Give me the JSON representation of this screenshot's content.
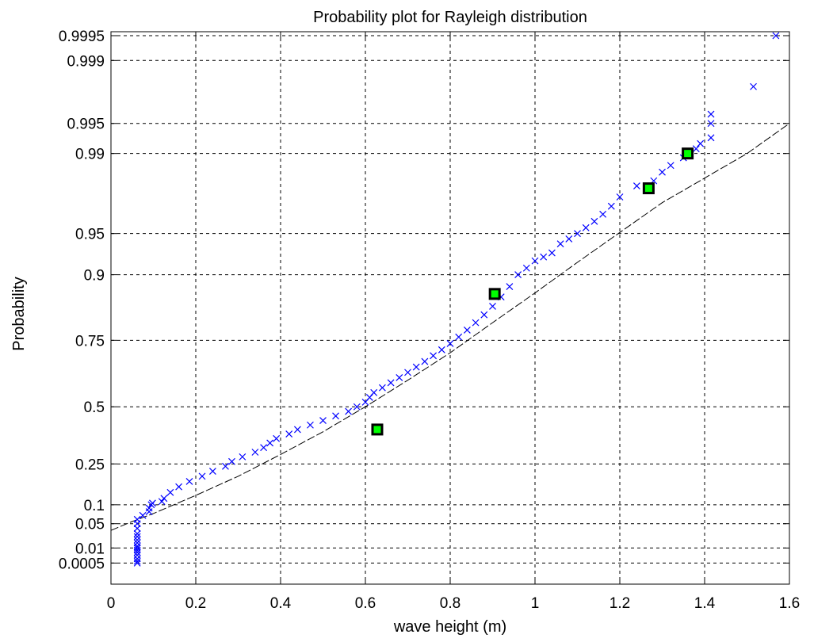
{
  "chart_data": {
    "type": "scatter",
    "title": "Probability plot for Rayleigh distribution",
    "xlabel": "wave height (m)",
    "ylabel": "Probability",
    "xlim": [
      0,
      1.6
    ],
    "x_ticks": [
      0,
      0.2,
      0.4,
      0.6,
      0.8,
      1,
      1.2,
      1.4,
      1.6
    ],
    "x_tick_labels": [
      "0",
      "0.2",
      "0.4",
      "0.6",
      "0.8",
      "1",
      "1.2",
      "1.4",
      "1.6"
    ],
    "y_scale": "rayleigh-probability",
    "y_ticks": [
      0.0005,
      0.01,
      0.05,
      0.1,
      0.25,
      0.5,
      0.75,
      0.9,
      0.95,
      0.99,
      0.995,
      0.999,
      0.9995
    ],
    "y_tick_labels": [
      "0.0005",
      "0.01",
      "0.05",
      "0.1",
      "0.25",
      "0.5",
      "0.75",
      "0.9",
      "0.95",
      "0.99",
      "0.995",
      "0.999",
      "0.9995"
    ],
    "grid": true,
    "colors": {
      "samples": "#0000ff",
      "fit_line": "#000000",
      "markers_fill": "#00ff00",
      "markers_edge": "#000000"
    },
    "samples": {
      "x": [
        0.062,
        0.062,
        0.062,
        0.062,
        0.062,
        0.062,
        0.062,
        0.062,
        0.062,
        0.062,
        0.062,
        0.062,
        0.062,
        0.062,
        0.062,
        0.075,
        0.09,
        0.09,
        0.095,
        0.098,
        0.12,
        0.125,
        0.14,
        0.16,
        0.185,
        0.215,
        0.24,
        0.27,
        0.285,
        0.31,
        0.34,
        0.36,
        0.375,
        0.39,
        0.42,
        0.44,
        0.47,
        0.5,
        0.53,
        0.56,
        0.58,
        0.6,
        0.61,
        0.62,
        0.64,
        0.66,
        0.68,
        0.7,
        0.72,
        0.74,
        0.76,
        0.78,
        0.8,
        0.82,
        0.84,
        0.86,
        0.88,
        0.9,
        0.92,
        0.94,
        0.96,
        0.98,
        1.0,
        1.02,
        1.04,
        1.06,
        1.08,
        1.1,
        1.12,
        1.14,
        1.16,
        1.18,
        1.2,
        1.24,
        1.28,
        1.3,
        1.32,
        1.35,
        1.365,
        1.38,
        1.39,
        1.415,
        1.415,
        1.415,
        1.515,
        1.568
      ],
      "y": [
        0.0005,
        0.001,
        0.002,
        0.004,
        0.006,
        0.008,
        0.01,
        0.012,
        0.016,
        0.02,
        0.025,
        0.03,
        0.04,
        0.05,
        0.06,
        0.07,
        0.08,
        0.09,
        0.1,
        0.105,
        0.11,
        0.12,
        0.14,
        0.16,
        0.18,
        0.2,
        0.22,
        0.24,
        0.26,
        0.28,
        0.3,
        0.32,
        0.34,
        0.36,
        0.38,
        0.4,
        0.42,
        0.44,
        0.46,
        0.48,
        0.5,
        0.52,
        0.54,
        0.56,
        0.58,
        0.6,
        0.62,
        0.64,
        0.66,
        0.68,
        0.7,
        0.72,
        0.74,
        0.76,
        0.78,
        0.8,
        0.82,
        0.84,
        0.86,
        0.88,
        0.9,
        0.91,
        0.92,
        0.925,
        0.93,
        0.94,
        0.945,
        0.95,
        0.955,
        0.96,
        0.965,
        0.97,
        0.975,
        0.98,
        0.982,
        0.985,
        0.987,
        0.989,
        0.99,
        0.991,
        0.992,
        0.993,
        0.995,
        0.996,
        0.998,
        0.9995
      ]
    },
    "fit_line": {
      "style": "dashed",
      "x": [
        0.0,
        0.05,
        0.1,
        0.2,
        0.3,
        0.4,
        0.5,
        0.6,
        0.7,
        0.8,
        0.9,
        1.0,
        1.1,
        1.2,
        1.3,
        1.4,
        1.5,
        1.6
      ],
      "y": [
        0.036,
        0.055,
        0.075,
        0.13,
        0.2,
        0.29,
        0.39,
        0.5,
        0.61,
        0.71,
        0.8,
        0.868,
        0.918,
        0.951,
        0.972,
        0.983,
        0.99,
        0.995
      ]
    },
    "highlight_points": {
      "x": [
        0.628,
        0.905,
        1.268,
        1.36
      ],
      "y": [
        0.4,
        0.866,
        0.979,
        0.99
      ]
    }
  }
}
